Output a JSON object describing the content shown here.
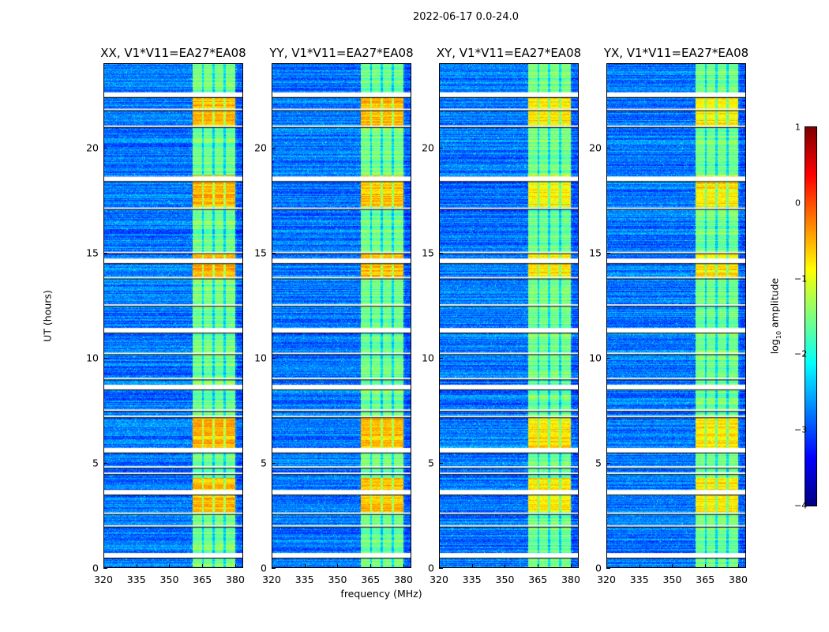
{
  "chart_data": {
    "type": "heatmap",
    "title": "2022-06-17 0.0-24.0",
    "xlabel": "frequency (MHz)",
    "ylabel": "UT (hours)",
    "xlim": [
      320,
      383.6
    ],
    "ylim": [
      0,
      24
    ],
    "xticks": [
      "320",
      "335",
      "350",
      "365",
      "380"
    ],
    "xtick_values": [
      320,
      335,
      350,
      365,
      380
    ],
    "yticks": [
      "0",
      "5",
      "10",
      "15",
      "20"
    ],
    "ytick_values": [
      0,
      5,
      10,
      15,
      20
    ],
    "panels": [
      {
        "title": "XX, V1*V11=EA27*EA08"
      },
      {
        "title": "YY, V1*V11=EA27*EA08"
      },
      {
        "title": "XY, V1*V11=EA27*EA08"
      },
      {
        "title": "YX, V1*V11=EA27*EA08"
      }
    ],
    "bright_band_mhz": [
      360.3,
      379.7
    ],
    "subband_gaps_mhz": [
      365,
      370,
      375
    ],
    "bright_time_ranges_hours": [
      [
        5.7,
        7.2
      ],
      [
        13.8,
        15.0
      ],
      [
        17.2,
        18.7
      ],
      [
        21.0,
        22.5
      ],
      [
        2.7,
        4.3
      ]
    ],
    "flagged_rows_hours": [
      0.6,
      2.0,
      2.6,
      3.6,
      4.5,
      4.8,
      5.6,
      7.2,
      7.5,
      8.6,
      9.0,
      10.2,
      11.3,
      12.5,
      13.8,
      14.6,
      15.0,
      17.1,
      18.5,
      21.0,
      21.8,
      22.5
    ],
    "colorbar": {
      "label": "log10 amplitude",
      "range": [
        -4,
        1
      ],
      "ticks": [
        "1",
        "0",
        "−1",
        "−2",
        "−3",
        "−4"
      ],
      "tick_values": [
        1,
        0,
        -1,
        -2,
        -3,
        -4
      ],
      "colormap": "jet"
    }
  }
}
